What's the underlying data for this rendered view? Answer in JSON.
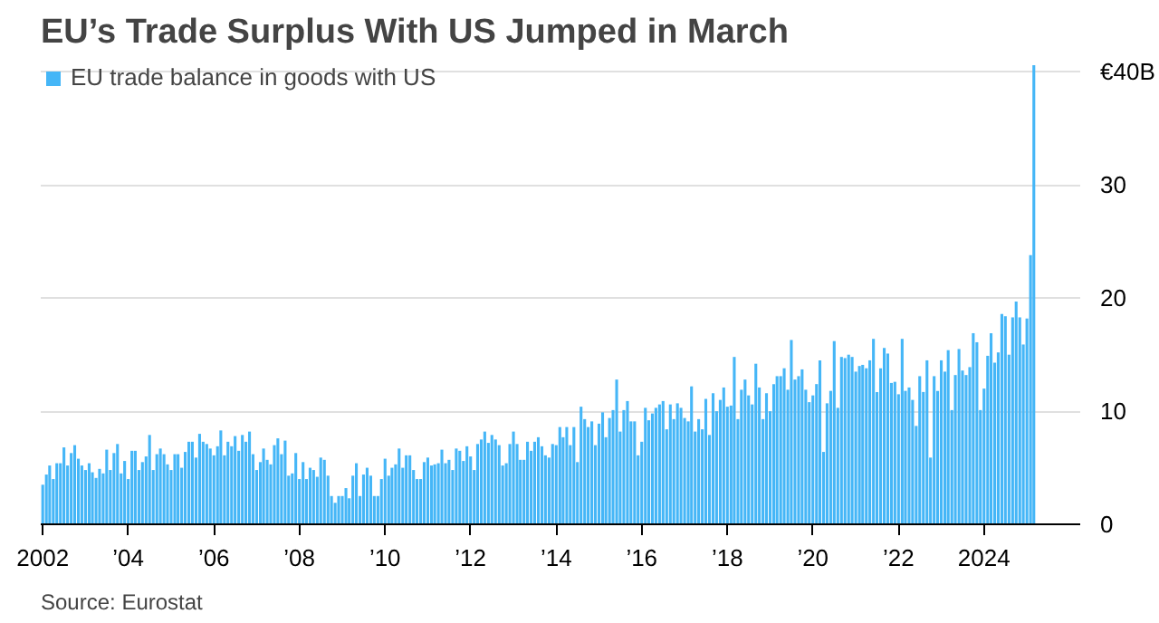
{
  "chart_data": {
    "type": "bar",
    "title": "EU’s Trade Surplus With US Jumped in March",
    "annotations": [
      "Source: Eurostat"
    ],
    "legend": "top left",
    "grid": "y",
    "x": [
      "2002-01",
      "2002-02",
      "2002-03",
      "2002-04",
      "2002-05",
      "2002-06",
      "2002-07",
      "2002-08",
      "2002-09",
      "2002-10",
      "2002-11",
      "2002-12",
      "2003-01",
      "2003-02",
      "2003-03",
      "2003-04",
      "2003-05",
      "2003-06",
      "2003-07",
      "2003-08",
      "2003-09",
      "2003-10",
      "2003-11",
      "2003-12",
      "2004-01",
      "2004-02",
      "2004-03",
      "2004-04",
      "2004-05",
      "2004-06",
      "2004-07",
      "2004-08",
      "2004-09",
      "2004-10",
      "2004-11",
      "2004-12",
      "2005-01",
      "2005-02",
      "2005-03",
      "2005-04",
      "2005-05",
      "2005-06",
      "2005-07",
      "2005-08",
      "2005-09",
      "2005-10",
      "2005-11",
      "2005-12",
      "2006-01",
      "2006-02",
      "2006-03",
      "2006-04",
      "2006-05",
      "2006-06",
      "2006-07",
      "2006-08",
      "2006-09",
      "2006-10",
      "2006-11",
      "2006-12",
      "2007-01",
      "2007-02",
      "2007-03",
      "2007-04",
      "2007-05",
      "2007-06",
      "2007-07",
      "2007-08",
      "2007-09",
      "2007-10",
      "2007-11",
      "2007-12",
      "2008-01",
      "2008-02",
      "2008-03",
      "2008-04",
      "2008-05",
      "2008-06",
      "2008-07",
      "2008-08",
      "2008-09",
      "2008-10",
      "2008-11",
      "2008-12",
      "2009-01",
      "2009-02",
      "2009-03",
      "2009-04",
      "2009-05",
      "2009-06",
      "2009-07",
      "2009-08",
      "2009-09",
      "2009-10",
      "2009-11",
      "2009-12",
      "2010-01",
      "2010-02",
      "2010-03",
      "2010-04",
      "2010-05",
      "2010-06",
      "2010-07",
      "2010-08",
      "2010-09",
      "2010-10",
      "2010-11",
      "2010-12",
      "2011-01",
      "2011-02",
      "2011-03",
      "2011-04",
      "2011-05",
      "2011-06",
      "2011-07",
      "2011-08",
      "2011-09",
      "2011-10",
      "2011-11",
      "2011-12",
      "2012-01",
      "2012-02",
      "2012-03",
      "2012-04",
      "2012-05",
      "2012-06",
      "2012-07",
      "2012-08",
      "2012-09",
      "2012-10",
      "2012-11",
      "2012-12",
      "2013-01",
      "2013-02",
      "2013-03",
      "2013-04",
      "2013-05",
      "2013-06",
      "2013-07",
      "2013-08",
      "2013-09",
      "2013-10",
      "2013-11",
      "2013-12",
      "2014-01",
      "2014-02",
      "2014-03",
      "2014-04",
      "2014-05",
      "2014-06",
      "2014-07",
      "2014-08",
      "2014-09",
      "2014-10",
      "2014-11",
      "2014-12",
      "2015-01",
      "2015-02",
      "2015-03",
      "2015-04",
      "2015-05",
      "2015-06",
      "2015-07",
      "2015-08",
      "2015-09",
      "2015-10",
      "2015-11",
      "2015-12",
      "2016-01",
      "2016-02",
      "2016-03",
      "2016-04",
      "2016-05",
      "2016-06",
      "2016-07",
      "2016-08",
      "2016-09",
      "2016-10",
      "2016-11",
      "2016-12",
      "2017-01",
      "2017-02",
      "2017-03",
      "2017-04",
      "2017-05",
      "2017-06",
      "2017-07",
      "2017-08",
      "2017-09",
      "2017-10",
      "2017-11",
      "2017-12",
      "2018-01",
      "2018-02",
      "2018-03",
      "2018-04",
      "2018-05",
      "2018-06",
      "2018-07",
      "2018-08",
      "2018-09",
      "2018-10",
      "2018-11",
      "2018-12",
      "2019-01",
      "2019-02",
      "2019-03",
      "2019-04",
      "2019-05",
      "2019-06",
      "2019-07",
      "2019-08",
      "2019-09",
      "2019-10",
      "2019-11",
      "2019-12",
      "2020-01",
      "2020-02",
      "2020-03",
      "2020-04",
      "2020-05",
      "2020-06",
      "2020-07",
      "2020-08",
      "2020-09",
      "2020-10",
      "2020-11",
      "2020-12",
      "2021-01",
      "2021-02",
      "2021-03",
      "2021-04",
      "2021-05",
      "2021-06",
      "2021-07",
      "2021-08",
      "2021-09",
      "2021-10",
      "2021-11",
      "2021-12",
      "2022-01",
      "2022-02",
      "2022-03",
      "2022-04",
      "2022-05",
      "2022-06",
      "2022-07",
      "2022-08",
      "2022-09",
      "2022-10",
      "2022-11",
      "2022-12",
      "2023-01",
      "2023-02",
      "2023-03",
      "2023-04",
      "2023-05",
      "2023-06",
      "2023-07",
      "2023-08",
      "2023-09",
      "2023-10",
      "2023-11",
      "2023-12",
      "2024-01",
      "2024-02",
      "2024-03",
      "2024-04",
      "2024-05",
      "2024-06",
      "2024-07",
      "2024-08",
      "2024-09",
      "2024-10",
      "2024-11",
      "2024-12",
      "2025-01",
      "2025-02",
      "2025-03"
    ],
    "series": [
      {
        "name": "EU trade balance in goods with US",
        "color": "#45b6f7",
        "values": [
          3.5,
          4.4,
          5.2,
          4.0,
          5.4,
          5.4,
          6.8,
          5.2,
          6.3,
          7.0,
          5.8,
          5.2,
          4.8,
          5.4,
          4.6,
          4.1,
          4.9,
          4.5,
          6.6,
          4.8,
          6.3,
          7.1,
          4.5,
          5.6,
          4.0,
          6.5,
          6.5,
          4.8,
          5.5,
          6.0,
          7.9,
          4.8,
          6.2,
          6.7,
          6.2,
          5.3,
          4.8,
          6.2,
          6.2,
          5.0,
          6.4,
          7.3,
          7.3,
          5.9,
          8.0,
          7.3,
          7.1,
          6.7,
          6.1,
          6.9,
          8.3,
          6.1,
          7.3,
          6.9,
          7.8,
          6.5,
          7.9,
          7.3,
          8.2,
          6.2,
          4.8,
          5.5,
          6.7,
          5.7,
          5.3,
          7.0,
          7.6,
          6.2,
          7.4,
          4.3,
          4.5,
          6.3,
          4.0,
          5.5,
          4.0,
          5.0,
          4.8,
          4.2,
          5.9,
          5.7,
          4.3,
          2.5,
          1.9,
          2.5,
          2.5,
          3.2,
          2.3,
          4.3,
          5.4,
          2.5,
          4.4,
          5.0,
          4.3,
          2.5,
          2.5,
          4.0,
          5.8,
          4.3,
          5.0,
          5.3,
          6.7,
          5.0,
          6.1,
          6.1,
          4.8,
          4.0,
          4.0,
          5.5,
          5.9,
          5.2,
          5.3,
          5.4,
          6.6,
          5.4,
          5.7,
          4.8,
          6.7,
          6.5,
          5.6,
          6.9,
          6.0,
          4.8,
          7.1,
          7.5,
          8.2,
          7.2,
          7.9,
          7.5,
          7.0,
          5.2,
          5.4,
          7.1,
          8.2,
          7.1,
          5.7,
          5.7,
          7.3,
          6.5,
          7.3,
          7.7,
          6.9,
          6.1,
          5.9,
          7.1,
          7.0,
          8.6,
          7.7,
          8.6,
          7.0,
          8.6,
          5.5,
          10.4,
          9.3,
          8.6,
          9.1,
          7.0,
          8.9,
          9.9,
          7.7,
          9.4,
          10.1,
          12.8,
          8.2,
          10.1,
          10.9,
          9.1,
          9.1,
          6.1,
          7.3,
          10.3,
          9.2,
          9.8,
          10.3,
          10.6,
          10.9,
          8.4,
          10.6,
          9.3,
          10.7,
          10.3,
          9.4,
          9.1,
          12.2,
          8.2,
          9.3,
          8.4,
          11.1,
          7.9,
          11.6,
          10.0,
          11.0,
          12.1,
          10.4,
          10.5,
          14.8,
          9.3,
          11.9,
          12.8,
          11.4,
          10.6,
          14.2,
          12.1,
          9.3,
          11.6,
          10.0,
          12.4,
          13.1,
          13.1,
          13.8,
          11.9,
          16.3,
          12.8,
          13.1,
          13.7,
          11.9,
          10.8,
          11.4,
          12.4,
          14.5,
          6.4,
          10.7,
          11.8,
          16.2,
          10.3,
          14.8,
          14.7,
          15.0,
          14.8,
          13.5,
          14.0,
          14.1,
          13.8,
          14.5,
          16.4,
          11.7,
          13.8,
          15.6,
          15.1,
          12.5,
          12.6,
          11.5,
          16.4,
          11.8,
          12.1,
          11.0,
          8.7,
          13.1,
          11.7,
          14.5,
          5.9,
          13.1,
          11.8,
          14.5,
          13.5,
          15.4,
          10.1,
          13.2,
          15.5,
          13.6,
          13.2,
          13.9,
          16.9,
          16.1,
          10.1,
          12.0,
          14.9,
          16.9,
          14.3,
          15.2,
          18.6,
          18.4,
          15.0,
          18.3,
          19.7,
          18.3,
          15.9,
          18.2,
          23.8,
          40.6
        ]
      }
    ],
    "xlim": [
      "2001-12-15",
      "2026-04"
    ],
    "xticks": [
      {
        "value": "2002",
        "label": "2002"
      },
      {
        "value": "2004",
        "label": "’04"
      },
      {
        "value": "2006",
        "label": "’06"
      },
      {
        "value": "2008",
        "label": "’08"
      },
      {
        "value": "2010",
        "label": "’10"
      },
      {
        "value": "2012",
        "label": "’12"
      },
      {
        "value": "2014",
        "label": "’14"
      },
      {
        "value": "2016",
        "label": "’16"
      },
      {
        "value": "2018",
        "label": "’18"
      },
      {
        "value": "2020",
        "label": "’20"
      },
      {
        "value": "2022",
        "label": "’22"
      },
      {
        "value": "2024",
        "label": "2024"
      }
    ],
    "ylim": [
      0,
      41
    ],
    "yticks": [
      0,
      10,
      20,
      30,
      {
        "value": 40,
        "label": "€40B"
      }
    ]
  }
}
